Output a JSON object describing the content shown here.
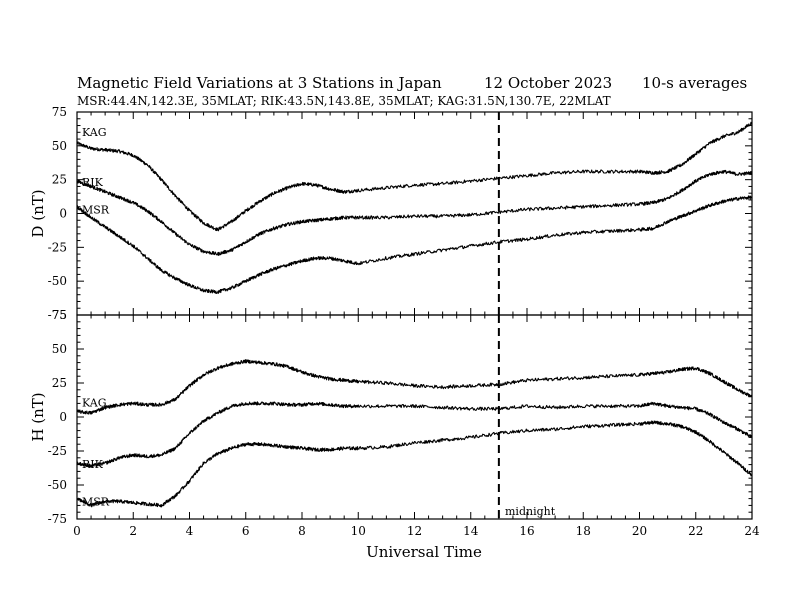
{
  "header": {
    "title": "Magnetic Field Variations at 3 Stations in Japan",
    "date": "12 October 2023",
    "averaging": "10-s averages",
    "stations_line": "MSR:44.4N,142.3E, 35MLAT;  RIK:43.5N,143.8E, 35MLAT;  KAG:31.5N,130.7E, 22MLAT"
  },
  "xlabel": "Universal Time",
  "midnight_label": "midnight",
  "chart_data": [
    {
      "type": "line",
      "ylabel": "D (nT)",
      "xlim": [
        0,
        24
      ],
      "ylim": [
        -75,
        75
      ],
      "xticks": [
        0,
        2,
        4,
        6,
        8,
        10,
        12,
        14,
        16,
        18,
        20,
        22,
        24
      ],
      "yticks": [
        75,
        50,
        25,
        0,
        -25,
        -50,
        -75
      ],
      "midnight_ut": 15,
      "series": [
        {
          "name": "KAG",
          "x": [
            0,
            0.5,
            1,
            1.5,
            2,
            2.5,
            3,
            3.5,
            4,
            4.5,
            5,
            5.5,
            6,
            6.5,
            7,
            7.5,
            8,
            8.5,
            9,
            9.5,
            10,
            11,
            12,
            13,
            14,
            15,
            16,
            17,
            18,
            19,
            20,
            20.5,
            21,
            21.5,
            22,
            22.5,
            23,
            23.5,
            24
          ],
          "y": [
            52,
            48,
            47,
            46,
            43,
            36,
            25,
            13,
            2,
            -7,
            -12,
            -6,
            2,
            9,
            15,
            19,
            22,
            21,
            18,
            16,
            17,
            19,
            21,
            22,
            24,
            26,
            28,
            30,
            31,
            31,
            31,
            30,
            31,
            36,
            44,
            52,
            57,
            60,
            67
          ]
        },
        {
          "name": "RIK",
          "x": [
            0,
            0.5,
            1,
            1.5,
            2,
            2.5,
            3,
            3.5,
            4,
            4.5,
            5,
            5.5,
            6,
            6.5,
            7,
            7.5,
            8,
            8.5,
            9,
            9.5,
            10,
            11,
            12,
            13,
            14,
            15,
            16,
            17,
            18,
            19,
            20,
            20.5,
            21,
            21.5,
            22,
            22.5,
            23,
            23.5,
            24
          ],
          "y": [
            24,
            20,
            16,
            12,
            8,
            2,
            -6,
            -15,
            -23,
            -28,
            -30,
            -27,
            -21,
            -15,
            -11,
            -8,
            -6,
            -5,
            -4,
            -3,
            -3,
            -3,
            -2,
            -2,
            -1,
            1,
            3,
            4,
            5,
            6,
            7,
            8,
            11,
            17,
            24,
            29,
            31,
            29,
            30
          ]
        },
        {
          "name": "MSR",
          "x": [
            0,
            0.5,
            1,
            1.5,
            2,
            2.5,
            3,
            3.5,
            4,
            4.5,
            5,
            5.5,
            6,
            6.5,
            7,
            7.5,
            8,
            8.5,
            9,
            9.5,
            10,
            11,
            12,
            13,
            14,
            15,
            16,
            17,
            18,
            19,
            20,
            20.5,
            21,
            21.5,
            22,
            22.5,
            23,
            23.5,
            24
          ],
          "y": [
            5,
            -3,
            -10,
            -17,
            -24,
            -33,
            -42,
            -48,
            -53,
            -57,
            -58,
            -55,
            -50,
            -45,
            -41,
            -38,
            -35,
            -33,
            -33,
            -35,
            -37,
            -33,
            -30,
            -27,
            -24,
            -21,
            -19,
            -16,
            -14,
            -13,
            -12,
            -11,
            -6,
            -2,
            2,
            6,
            9,
            11,
            12
          ]
        }
      ]
    },
    {
      "type": "line",
      "ylabel": "H (nT)",
      "xlim": [
        0,
        24
      ],
      "ylim": [
        -75,
        75
      ],
      "xticks": [
        0,
        2,
        4,
        6,
        8,
        10,
        12,
        14,
        16,
        18,
        20,
        22,
        24
      ],
      "yticks": [
        75,
        50,
        25,
        0,
        -25,
        -50,
        -75
      ],
      "midnight_ut": 15,
      "series": [
        {
          "name": "KAG",
          "x": [
            0,
            0.5,
            1,
            1.5,
            2,
            2.5,
            3,
            3.5,
            4,
            4.5,
            5,
            5.5,
            6,
            6.5,
            7,
            7.5,
            8,
            8.5,
            9,
            9.5,
            10,
            11,
            12,
            13,
            14,
            15,
            16,
            17,
            18,
            19,
            20,
            20.5,
            21,
            21.5,
            22,
            22.5,
            23,
            23.5,
            24
          ],
          "y": [
            4,
            3,
            7,
            9,
            10,
            9,
            9,
            13,
            23,
            31,
            36,
            39,
            41,
            40,
            39,
            37,
            33,
            30,
            28,
            27,
            26,
            25,
            23,
            22,
            23,
            24,
            27,
            28,
            29,
            30,
            31,
            32,
            33,
            35,
            36,
            32,
            26,
            20,
            15
          ]
        },
        {
          "name": "RIK",
          "x": [
            0,
            0.5,
            1,
            1.5,
            2,
            2.5,
            3,
            3.5,
            4,
            4.5,
            5,
            5.5,
            6,
            6.5,
            7,
            7.5,
            8,
            8.5,
            9,
            9.5,
            10,
            11,
            12,
            13,
            14,
            15,
            16,
            17,
            18,
            19,
            20,
            20.5,
            21,
            21.5,
            22,
            22.5,
            23,
            23.5,
            24
          ],
          "y": [
            -34,
            -36,
            -34,
            -30,
            -28,
            -29,
            -28,
            -23,
            -12,
            -3,
            3,
            8,
            10,
            10,
            10,
            9,
            9,
            10,
            9,
            8,
            8,
            8,
            8,
            7,
            6,
            6,
            8,
            7,
            8,
            8,
            8,
            10,
            8,
            7,
            6,
            2,
            -4,
            -9,
            -15
          ]
        },
        {
          "name": "MSR",
          "x": [
            0,
            0.5,
            1,
            1.5,
            2,
            2.5,
            3,
            3.5,
            4,
            4.5,
            5,
            5.5,
            6,
            6.5,
            7,
            7.5,
            8,
            8.5,
            9,
            9.5,
            10,
            11,
            12,
            13,
            14,
            15,
            16,
            17,
            18,
            19,
            20,
            20.5,
            21,
            21.5,
            22,
            22.5,
            23,
            23.5,
            24
          ],
          "y": [
            -60,
            -65,
            -62,
            -62,
            -63,
            -64,
            -65,
            -58,
            -47,
            -34,
            -27,
            -23,
            -20,
            -20,
            -21,
            -22,
            -23,
            -24,
            -24,
            -23,
            -23,
            -22,
            -19,
            -17,
            -15,
            -12,
            -10,
            -9,
            -7,
            -6,
            -5,
            -4,
            -5,
            -7,
            -11,
            -18,
            -26,
            -34,
            -43
          ]
        }
      ]
    }
  ]
}
